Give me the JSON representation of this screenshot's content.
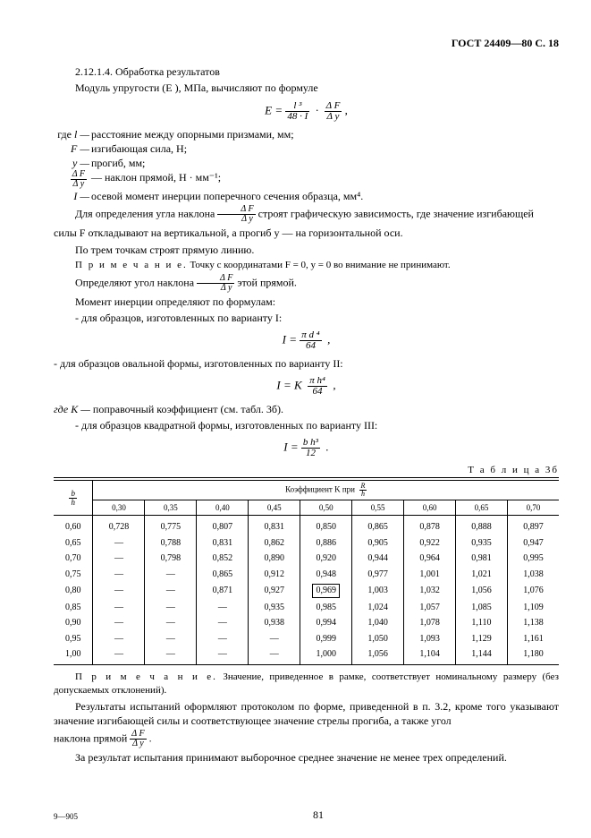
{
  "header": "ГОСТ 24409—80 С. 18",
  "sec_num": "2.12.1.4. Обработка результатов",
  "modulus_text": "Модуль упругости (E ), МПа, вычисляют по формуле",
  "formula_main": {
    "lhs": "E",
    "mid_num": "l ³",
    "mid_den": "48 · I",
    "right_num": "Δ F",
    "right_den": "Δ y"
  },
  "defs": {
    "intro": "где",
    "l_sym": "l —",
    "l_txt": "расстояние между опорными призмами, мм;",
    "F_sym": "F —",
    "F_txt": "изгибающая сила, Н;",
    "y_sym": "y —",
    "y_txt": "прогиб, мм;",
    "slope_txt": "— наклон прямой, Н · мм⁻¹;",
    "I_sym": "I —",
    "I_txt": "осевой момент инерции поперечного сечения образца, мм⁴."
  },
  "para_angle_a": "Для определения угла наклона",
  "para_angle_b": "строят графическую зависимость, где значение изгибающей",
  "para_angle_c": "силы F откладывают на вертикальной, а прогиб y — на горизонтальной оси.",
  "para_3pts": "По трем точкам строят прямую линию.",
  "note_prefix": "П р и м е ч а н и е.",
  "note_body": " Точку с координатами F = 0, y = 0 во внимание не принимают.",
  "para_det_a": "Определяют угол наклона",
  "para_det_b": "этой прямой.",
  "para_mom": "Момент инерции определяют по формулам:",
  "para_var1": "- для образцов, изготовленных по варианту I:",
  "formula_I1": {
    "lhs": "I",
    "num": "π d ⁴",
    "den": "64"
  },
  "para_var2": "- для образцов овальной формы, изготовленных по варианту II:",
  "formula_I2": {
    "lhs": "I",
    "k": "K",
    "num": "π h⁴",
    "den": "64"
  },
  "K_def_a": "где K —",
  "K_def_b": "поправочный коэффициент (см. табл. 3б).",
  "para_var3": "- для образцов квадратной формы, изготовленных по варианту III:",
  "formula_I3": {
    "lhs": "I",
    "num": "b h³",
    "den": "12"
  },
  "table_label": "Т а б л и ц а   3б",
  "table": {
    "row_header_num": "b",
    "row_header_den": "h",
    "head_title_a": "Коэффициент K при",
    "head_title_num": "R",
    "head_title_den": "h",
    "cols": [
      "0,30",
      "0,35",
      "0,40",
      "0,45",
      "0,50",
      "0,55",
      "0,60",
      "0,65",
      "0,70"
    ],
    "left": [
      "0,60",
      "0,65",
      "0,70",
      "0,75",
      "0,80",
      "0,85",
      "0,90",
      "0,95",
      "1,00"
    ],
    "rows": [
      [
        "0,728",
        "0,775",
        "0,807",
        "0,831",
        "0,850",
        "0,865",
        "0,878",
        "0,888",
        "0,897"
      ],
      [
        "—",
        "0,788",
        "0,831",
        "0,862",
        "0,886",
        "0,905",
        "0,922",
        "0,935",
        "0,947"
      ],
      [
        "—",
        "0,798",
        "0,852",
        "0,890",
        "0,920",
        "0,944",
        "0,964",
        "0,981",
        "0,995"
      ],
      [
        "—",
        "—",
        "0,865",
        "0,912",
        "0,948",
        "0,977",
        "1,001",
        "1,021",
        "1,038"
      ],
      [
        "—",
        "—",
        "0,871",
        "0,927",
        "0,969",
        "1,003",
        "1,032",
        "1,056",
        "1,076"
      ],
      [
        "—",
        "—",
        "—",
        "0,935",
        "0,985",
        "1,024",
        "1,057",
        "1,085",
        "1,109"
      ],
      [
        "—",
        "—",
        "—",
        "0,938",
        "0,994",
        "1,040",
        "1,078",
        "1,110",
        "1,138"
      ],
      [
        "—",
        "—",
        "—",
        "—",
        "0,999",
        "1,050",
        "1,093",
        "1,129",
        "1,161"
      ],
      [
        "—",
        "—",
        "—",
        "—",
        "1,000",
        "1,056",
        "1,104",
        "1,144",
        "1,180"
      ]
    ],
    "boxed_row": 4,
    "boxed_col": 4
  },
  "note2_body": " Значение, приведенное в рамке, соответствует номинальному размеру (без допускаемых отклонений).",
  "results_a": "Результаты испытаний оформляют протоколом по форме, приведенной в п. 3.2, кроме того указывают значение изгибающей силы и соответствующее значение стрелы прогиба, а также угол",
  "results_b": "наклона прямой",
  "final": "За результат испытания принимают выборочное среднее значение не менее трех определений.",
  "foot_left": "9—905",
  "foot_center": "81"
}
